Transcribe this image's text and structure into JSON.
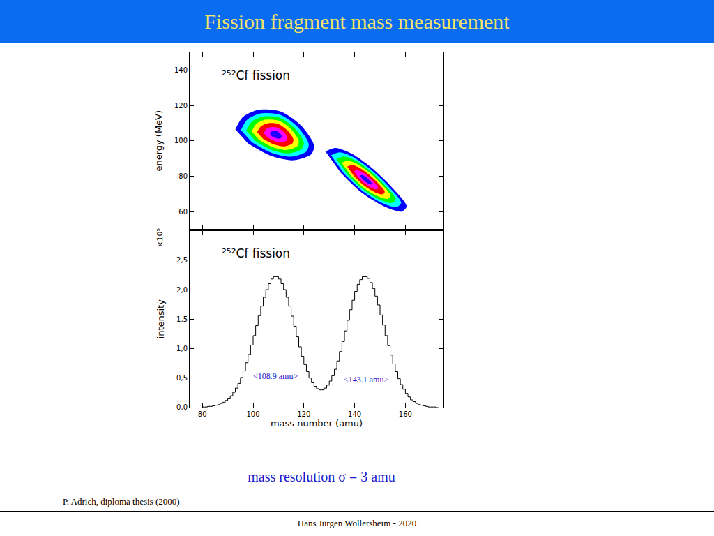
{
  "slide": {
    "title": "Fission fragment mass measurement",
    "note": "mass resolution σ = 3 amu",
    "credit": "P. Adrich, diploma thesis (2000)",
    "footer": "Hans Jürgen Wollersheim - 2020"
  },
  "chart_data": [
    {
      "type": "contour",
      "title": "²⁵²Cf fission",
      "y_label": "energy (MeV)",
      "xlim": [
        75,
        175
      ],
      "ylim": [
        50,
        150
      ],
      "xticks": [
        80,
        100,
        120,
        140,
        160
      ],
      "yticks": [
        60,
        80,
        100,
        120,
        140
      ],
      "tick_labels": "y",
      "grid": false,
      "series": [
        {
          "color": "#0000ff",
          "x": [
            93,
            96,
            102,
            111,
            119,
            124,
            123,
            116,
            107,
            98
          ],
          "y": [
            106.5,
            113.5,
            117.5,
            116.5,
            108.5,
            97.5,
            92.5,
            89,
            91.5,
            98.5
          ]
        },
        {
          "color": "#00ffff",
          "x": [
            95.2,
            97.8,
            103,
            110.7,
            117.6,
            121.9,
            121,
            115,
            107.3,
            99.5
          ],
          "y": [
            106.1,
            112.1,
            115.5,
            114.7,
            107.8,
            98.3,
            94,
            91,
            93.2,
            99.2
          ]
        },
        {
          "color": "#00ff00",
          "x": [
            97.3,
            99.5,
            103.9,
            110.5,
            116.3,
            120,
            119.2,
            114.1,
            107.5,
            101
          ],
          "y": [
            105.7,
            110.8,
            113.7,
            113,
            107.2,
            99.1,
            95.5,
            92.9,
            94.7,
            99.8
          ]
        },
        {
          "color": "#ffff00",
          "x": [
            99.4,
            101.2,
            104.8,
            110.2,
            115,
            118,
            117.4,
            113.2,
            107.8,
            102.4
          ],
          "y": [
            105.3,
            109.5,
            111.9,
            111.3,
            106.5,
            99.9,
            96.9,
            94.8,
            96.3,
            100.5
          ]
        },
        {
          "color": "#ff0000",
          "x": [
            101.6,
            103,
            105.8,
            109.9,
            113.6,
            115.9,
            115.4,
            112.2,
            108.1,
            103.9
          ],
          "y": [
            104.9,
            108.1,
            109.9,
            109.5,
            105.8,
            100.7,
            98.4,
            96.8,
            98,
            101.2
          ]
        },
        {
          "color": "#ff00ff",
          "x": [
            104.2,
            105.1,
            106.9,
            109.6,
            112,
            113.5,
            113.2,
            111.1,
            108.4,
            105.7
          ],
          "y": [
            104.4,
            106.5,
            107.7,
            107.4,
            105,
            101.7,
            100.2,
            99.1,
            99.9,
            102
          ]
        },
        {
          "color": "#2200ff",
          "x": [
            106.6,
            107,
            108,
            109.3,
            110.5,
            111.3,
            111.1,
            110,
            108.7,
            107.3
          ],
          "y": [
            104,
            105,
            105.6,
            105.5,
            104.3,
            102.6,
            101.8,
            101.3,
            101.7,
            102.7
          ]
        },
        {
          "color": "#0000ff",
          "x": [
            128.5,
            132.5,
            138.5,
            146.5,
            154.5,
            160.5,
            158.5,
            151.5,
            142.5,
            134.5
          ],
          "y": [
            94,
            96,
            93,
            85,
            74,
            63,
            60,
            63,
            71,
            82
          ]
        },
        {
          "color": "#00ffff",
          "x": [
            130.7,
            134.2,
            139.3,
            146.2,
            153.1,
            158.3,
            156.5,
            150.5,
            142.8,
            135.9
          ],
          "y": [
            91.8,
            93.5,
            90.9,
            84,
            74.6,
            65.1,
            62.5,
            65.1,
            72,
            81.4
          ]
        },
        {
          "color": "#00ff00",
          "x": [
            132.8,
            135.7,
            140.1,
            146,
            151.8,
            156.2,
            154.7,
            149.6,
            143,
            137.2
          ],
          "y": [
            89.7,
            91.1,
            89,
            83.1,
            75.1,
            67,
            64.9,
            67,
            72.9,
            80.9
          ]
        },
        {
          "color": "#ffff00",
          "x": [
            134.9,
            137.3,
            140.9,
            145.7,
            150.5,
            154.1,
            152.9,
            148.7,
            143.3,
            138.5
          ],
          "y": [
            87.6,
            88.8,
            87,
            82.2,
            75.6,
            69,
            67.2,
            69,
            73.8,
            80.4
          ]
        },
        {
          "color": "#ff0000",
          "x": [
            137.1,
            139,
            141.7,
            145.4,
            149.1,
            151.9,
            150.9,
            147.7,
            143.6,
            139.9
          ],
          "y": [
            85.4,
            86.3,
            84.9,
            81.2,
            76.2,
            71.1,
            69.7,
            71.1,
            74.8,
            79.8
          ]
        },
        {
          "color": "#ff00ff",
          "x": [
            139.7,
            140.9,
            142.7,
            145.1,
            147.5,
            149.3,
            148.7,
            146.6,
            143.9,
            141.5
          ],
          "y": [
            82.8,
            83.4,
            82.5,
            80.1,
            76.8,
            73.5,
            72.6,
            73.5,
            75.9,
            79.2
          ]
        },
        {
          "color": "#2200ff",
          "x": [
            142.1,
            142.7,
            143.6,
            144.8,
            146,
            146.9,
            146.6,
            145.6,
            144.2,
            143
          ],
          "y": [
            80.4,
            80.7,
            80.3,
            79.1,
            77.4,
            75.7,
            75.3,
            75.7,
            76.9,
            78.6
          ]
        }
      ]
    },
    {
      "type": "histogram",
      "title": "²⁵²Cf fission",
      "x_label": "mass number (amu)",
      "y_label": "intensity",
      "xlim": [
        75,
        175
      ],
      "ylim": [
        0,
        3.0
      ],
      "xticks": [
        80,
        100,
        120,
        140,
        160
      ],
      "yticks": [
        {
          "value": 0,
          "label": "0,0"
        },
        {
          "value": 0.5,
          "label": "0,5"
        },
        {
          "value": 1.0,
          "label": "1,0"
        },
        {
          "value": 1.5,
          "label": "1,5"
        },
        {
          "value": 2.0,
          "label": "2,0"
        },
        {
          "value": 2.5,
          "label": "2,5"
        }
      ],
      "grid": false,
      "color": "#000000",
      "annotations": [
        {
          "text": "×10⁵"
        },
        {
          "text": "<108.9 amu>",
          "x": 108.9,
          "y": 0.53
        },
        {
          "text": "<143.1 amu>",
          "x": 144.5,
          "y": 0.47
        }
      ],
      "bins": [
        80,
        81,
        82,
        83,
        84,
        85,
        86,
        87,
        88,
        89,
        90,
        91,
        92,
        93,
        94,
        95,
        96,
        97,
        98,
        99,
        100,
        101,
        102,
        103,
        104,
        105,
        106,
        107,
        108,
        109,
        110,
        111,
        112,
        113,
        114,
        115,
        116,
        117,
        118,
        119,
        120,
        121,
        122,
        123,
        124,
        125,
        126,
        127,
        128,
        129,
        130,
        131,
        132,
        133,
        134,
        135,
        136,
        137,
        138,
        139,
        140,
        141,
        142,
        143,
        144,
        145,
        146,
        147,
        148,
        149,
        150,
        151,
        152,
        153,
        154,
        155,
        156,
        157,
        158,
        159,
        160,
        161,
        162,
        163,
        164,
        165,
        166,
        167,
        168,
        169,
        170,
        171,
        172,
        173
      ],
      "values": [
        0.01,
        0.01,
        0.02,
        0.02,
        0.03,
        0.04,
        0.05,
        0.07,
        0.09,
        0.12,
        0.16,
        0.2,
        0.26,
        0.33,
        0.41,
        0.51,
        0.62,
        0.76,
        0.9,
        1.06,
        1.22,
        1.39,
        1.56,
        1.72,
        1.87,
        2.0,
        2.1,
        2.18,
        2.22,
        2.22,
        2.18,
        2.1,
        2.0,
        1.87,
        1.72,
        1.55,
        1.38,
        1.2,
        1.03,
        0.87,
        0.73,
        0.61,
        0.5,
        0.42,
        0.36,
        0.32,
        0.3,
        0.3,
        0.33,
        0.38,
        0.45,
        0.54,
        0.65,
        0.79,
        0.95,
        1.12,
        1.3,
        1.48,
        1.66,
        1.82,
        1.97,
        2.09,
        2.17,
        2.22,
        2.22,
        2.19,
        2.12,
        2.02,
        1.89,
        1.74,
        1.57,
        1.4,
        1.22,
        1.05,
        0.89,
        0.74,
        0.61,
        0.49,
        0.39,
        0.31,
        0.24,
        0.18,
        0.13,
        0.1,
        0.07,
        0.05,
        0.04,
        0.03,
        0.02,
        0.01,
        0.01,
        0.01,
        0.0
      ]
    }
  ]
}
